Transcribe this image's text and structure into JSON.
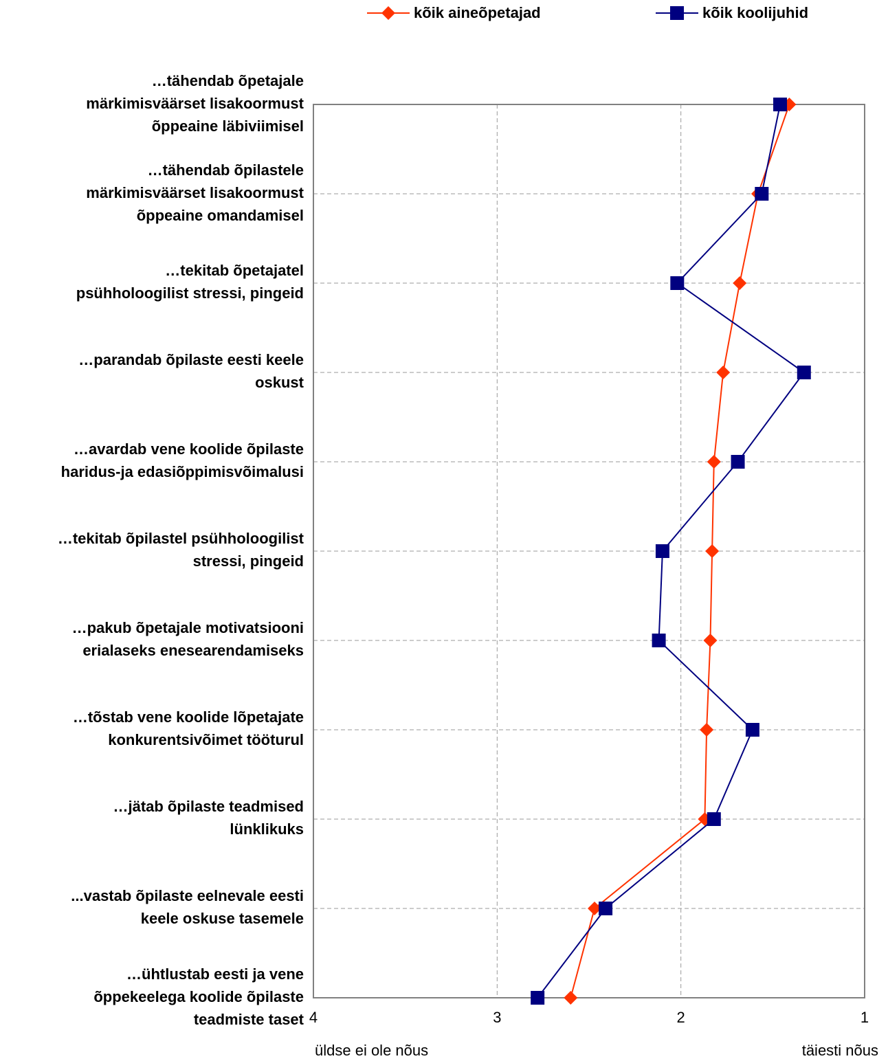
{
  "chart_data": {
    "type": "line",
    "orientation": "horizontal",
    "x_axis": {
      "min": 1,
      "max": 4,
      "reversed": true,
      "ticks": [
        "4",
        "3",
        "2",
        "1"
      ],
      "label_left": "üldse ei ole nõus",
      "label_right": "täiesti nõus"
    },
    "grid": true,
    "legend": "top",
    "categories": [
      "…tähendab õpetajale märkimisväärset lisakoormust õppeaine läbiviimisel",
      "…tähendab õpilastele märkimisväärset lisakoormust õppeaine omandamisel",
      "…tekitab õpetajatel psühholoogilist stressi, pingeid",
      "…parandab õpilaste eesti keele oskust",
      "…avardab vene koolide õpilaste haridus-ja edasiõppimisvõimalusi",
      "…tekitab õpilastel psühholoogilist stressi, pingeid",
      "…pakub õpetajale motivatsiooni erialaseks enesearendamiseks",
      "…tõstab vene koolide lõpetajate konkurentsivõimet tööturul",
      "…jätab õpilaste teadmised lünklikuks",
      "...vastab õpilaste eelnevale eesti keele oskuse tasemele",
      "…ühtlustab eesti ja vene õppekeelega koolide õpilaste teadmiste taset"
    ],
    "category_lines": [
      [
        "…tähendab õpetajale",
        "märkimisväärset lisakoormust",
        "õppeaine läbiviimisel"
      ],
      [
        "…tähendab õpilastele",
        "märkimisväärset lisakoormust",
        "õppeaine omandamisel"
      ],
      [
        "…tekitab õpetajatel",
        "psühholoogilist stressi, pingeid"
      ],
      [
        "…parandab õpilaste eesti keele",
        "oskust"
      ],
      [
        "…avardab vene koolide õpilaste",
        "haridus-ja edasiõppimisvõimalusi"
      ],
      [
        "…tekitab õpilastel psühholoogilist",
        "stressi, pingeid"
      ],
      [
        "…pakub õpetajale motivatsiooni",
        "erialaseks enesearendamiseks"
      ],
      [
        "…tõstab vene koolide lõpetajate",
        "konkurentsivõimet tööturul"
      ],
      [
        "…jätab õpilaste teadmised",
        "lünklikuks"
      ],
      [
        "...vastab õpilaste eelnevale eesti",
        "keele oskuse tasemele"
      ],
      [
        "…ühtlustab eesti ja vene",
        "õppekeelega koolide õpilaste",
        "teadmiste taset"
      ]
    ],
    "series": [
      {
        "name": "kõik aineõpetajad",
        "color": "#ff3300",
        "marker": "diamond",
        "values": [
          1.41,
          1.58,
          1.68,
          1.77,
          1.82,
          1.83,
          1.84,
          1.86,
          1.87,
          2.47,
          2.6
        ]
      },
      {
        "name": "kõik koolijuhid",
        "color": "#000080",
        "marker": "square",
        "values": [
          1.46,
          1.56,
          2.02,
          1.33,
          1.69,
          2.1,
          2.12,
          1.61,
          1.82,
          2.41,
          2.78
        ]
      }
    ]
  }
}
